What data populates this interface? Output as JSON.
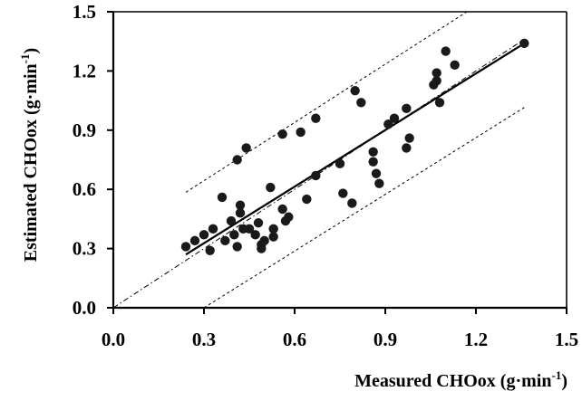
{
  "chart_data": {
    "type": "scatter",
    "title": "",
    "xlabel": "Measured CHOox (g·min",
    "xlabel_sup": "-1",
    "xlabel_close": ")",
    "ylabel": "Estimated CHOox (g·min",
    "ylabel_sup": "-1",
    "ylabel_close": ")",
    "xlim": [
      0.0,
      1.5
    ],
    "ylim": [
      0.0,
      1.5
    ],
    "xticks": [
      "0.0",
      "0.3",
      "0.6",
      "0.9",
      "1.2",
      "1.5"
    ],
    "yticks": [
      "0.0",
      "0.3",
      "0.6",
      "0.9",
      "1.2",
      "1.5"
    ],
    "grid": false,
    "legend": "none",
    "points": [
      {
        "x": 0.24,
        "y": 0.31
      },
      {
        "x": 0.27,
        "y": 0.34
      },
      {
        "x": 0.3,
        "y": 0.37
      },
      {
        "x": 0.32,
        "y": 0.29
      },
      {
        "x": 0.33,
        "y": 0.4
      },
      {
        "x": 0.36,
        "y": 0.56
      },
      {
        "x": 0.37,
        "y": 0.34
      },
      {
        "x": 0.39,
        "y": 0.44
      },
      {
        "x": 0.4,
        "y": 0.37
      },
      {
        "x": 0.41,
        "y": 0.31
      },
      {
        "x": 0.41,
        "y": 0.75
      },
      {
        "x": 0.42,
        "y": 0.48
      },
      {
        "x": 0.42,
        "y": 0.52
      },
      {
        "x": 0.43,
        "y": 0.4
      },
      {
        "x": 0.44,
        "y": 0.81
      },
      {
        "x": 0.45,
        "y": 0.4
      },
      {
        "x": 0.47,
        "y": 0.37
      },
      {
        "x": 0.48,
        "y": 0.43
      },
      {
        "x": 0.49,
        "y": 0.32
      },
      {
        "x": 0.49,
        "y": 0.3
      },
      {
        "x": 0.5,
        "y": 0.34
      },
      {
        "x": 0.52,
        "y": 0.61
      },
      {
        "x": 0.53,
        "y": 0.4
      },
      {
        "x": 0.53,
        "y": 0.36
      },
      {
        "x": 0.56,
        "y": 0.88
      },
      {
        "x": 0.56,
        "y": 0.5
      },
      {
        "x": 0.57,
        "y": 0.44
      },
      {
        "x": 0.58,
        "y": 0.46
      },
      {
        "x": 0.62,
        "y": 0.89
      },
      {
        "x": 0.64,
        "y": 0.55
      },
      {
        "x": 0.67,
        "y": 0.96
      },
      {
        "x": 0.67,
        "y": 0.67
      },
      {
        "x": 0.75,
        "y": 0.73
      },
      {
        "x": 0.76,
        "y": 0.58
      },
      {
        "x": 0.79,
        "y": 0.53
      },
      {
        "x": 0.8,
        "y": 1.1
      },
      {
        "x": 0.82,
        "y": 1.04
      },
      {
        "x": 0.86,
        "y": 0.79
      },
      {
        "x": 0.86,
        "y": 0.74
      },
      {
        "x": 0.87,
        "y": 0.68
      },
      {
        "x": 0.88,
        "y": 0.63
      },
      {
        "x": 0.91,
        "y": 0.93
      },
      {
        "x": 0.93,
        "y": 0.96
      },
      {
        "x": 0.97,
        "y": 1.01
      },
      {
        "x": 0.97,
        "y": 0.81
      },
      {
        "x": 0.98,
        "y": 0.86
      },
      {
        "x": 1.06,
        "y": 1.13
      },
      {
        "x": 1.07,
        "y": 1.19
      },
      {
        "x": 1.07,
        "y": 1.15
      },
      {
        "x": 1.08,
        "y": 1.04
      },
      {
        "x": 1.1,
        "y": 1.3
      },
      {
        "x": 1.13,
        "y": 1.23
      },
      {
        "x": 1.36,
        "y": 1.34
      }
    ],
    "lines": [
      {
        "role": "regression",
        "style": "solid",
        "x": [
          0.24,
          1.36
        ],
        "y": [
          0.27,
          1.34
        ]
      },
      {
        "role": "identity",
        "style": "dash-dot",
        "x": [
          0.0,
          1.36
        ],
        "y": [
          0.0,
          1.36
        ]
      },
      {
        "role": "upper-limit",
        "style": "dashed",
        "x": [
          0.24,
          1.17
        ],
        "y": [
          0.585,
          1.5
        ]
      },
      {
        "role": "lower-limit",
        "style": "dashed",
        "x": [
          0.3,
          1.36
        ],
        "y": [
          0.0,
          1.015
        ]
      }
    ],
    "colors": {
      "points": "#1a1a1a",
      "lines": "#000000"
    }
  }
}
